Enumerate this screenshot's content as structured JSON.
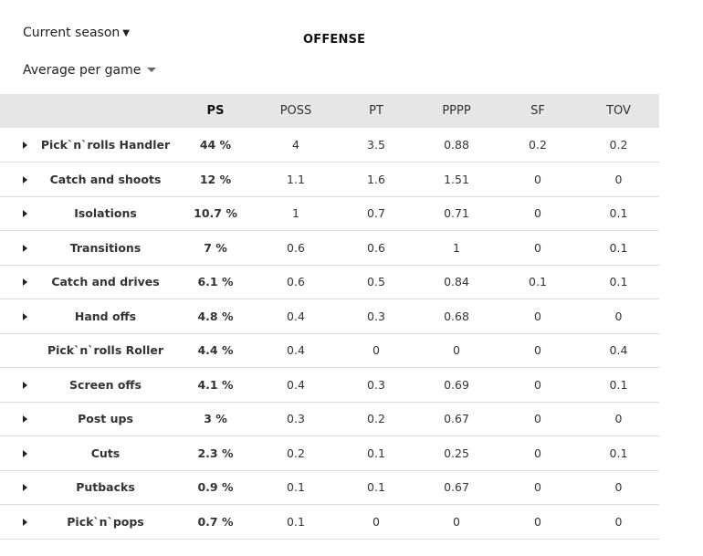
{
  "controls": {
    "season_label": "Current season",
    "average_label": "Average per game"
  },
  "section_title": "OFFENSE",
  "table": {
    "headers": [
      "PS",
      "POSS",
      "PT",
      "PPPP",
      "SF",
      "TOV"
    ],
    "rows": [
      {
        "name": "Pick`n`rolls Handler",
        "expandable": true,
        "ps": "44 %",
        "poss": "4",
        "pt": "3.5",
        "pppp": "0.88",
        "sf": "0.2",
        "tov": "0.2"
      },
      {
        "name": "Catch and shoots",
        "expandable": true,
        "ps": "12 %",
        "poss": "1.1",
        "pt": "1.6",
        "pppp": "1.51",
        "sf": "0",
        "tov": "0"
      },
      {
        "name": "Isolations",
        "expandable": true,
        "ps": "10.7 %",
        "poss": "1",
        "pt": "0.7",
        "pppp": "0.71",
        "sf": "0",
        "tov": "0.1"
      },
      {
        "name": "Transitions",
        "expandable": true,
        "ps": "7 %",
        "poss": "0.6",
        "pt": "0.6",
        "pppp": "1",
        "sf": "0",
        "tov": "0.1"
      },
      {
        "name": "Catch and drives",
        "expandable": true,
        "ps": "6.1 %",
        "poss": "0.6",
        "pt": "0.5",
        "pppp": "0.84",
        "sf": "0.1",
        "tov": "0.1"
      },
      {
        "name": "Hand offs",
        "expandable": true,
        "ps": "4.8 %",
        "poss": "0.4",
        "pt": "0.3",
        "pppp": "0.68",
        "sf": "0",
        "tov": "0"
      },
      {
        "name": "Pick`n`rolls Roller",
        "expandable": false,
        "ps": "4.4 %",
        "poss": "0.4",
        "pt": "0",
        "pppp": "0",
        "sf": "0",
        "tov": "0.4"
      },
      {
        "name": "Screen offs",
        "expandable": true,
        "ps": "4.1 %",
        "poss": "0.4",
        "pt": "0.3",
        "pppp": "0.69",
        "sf": "0",
        "tov": "0.1"
      },
      {
        "name": "Post ups",
        "expandable": true,
        "ps": "3 %",
        "poss": "0.3",
        "pt": "0.2",
        "pppp": "0.67",
        "sf": "0",
        "tov": "0"
      },
      {
        "name": "Cuts",
        "expandable": true,
        "ps": "2.3 %",
        "poss": "0.2",
        "pt": "0.1",
        "pppp": "0.25",
        "sf": "0",
        "tov": "0.1"
      },
      {
        "name": "Putbacks",
        "expandable": true,
        "ps": "0.9 %",
        "poss": "0.1",
        "pt": "0.1",
        "pppp": "0.67",
        "sf": "0",
        "tov": "0"
      },
      {
        "name": "Pick`n`pops",
        "expandable": true,
        "ps": "0.7 %",
        "poss": "0.1",
        "pt": "0",
        "pppp": "0",
        "sf": "0",
        "tov": "0"
      }
    ]
  },
  "colors": {
    "link": "#2a4f9c",
    "header_bg": "#e6e6e6",
    "row_border": "#dcdcdc"
  }
}
